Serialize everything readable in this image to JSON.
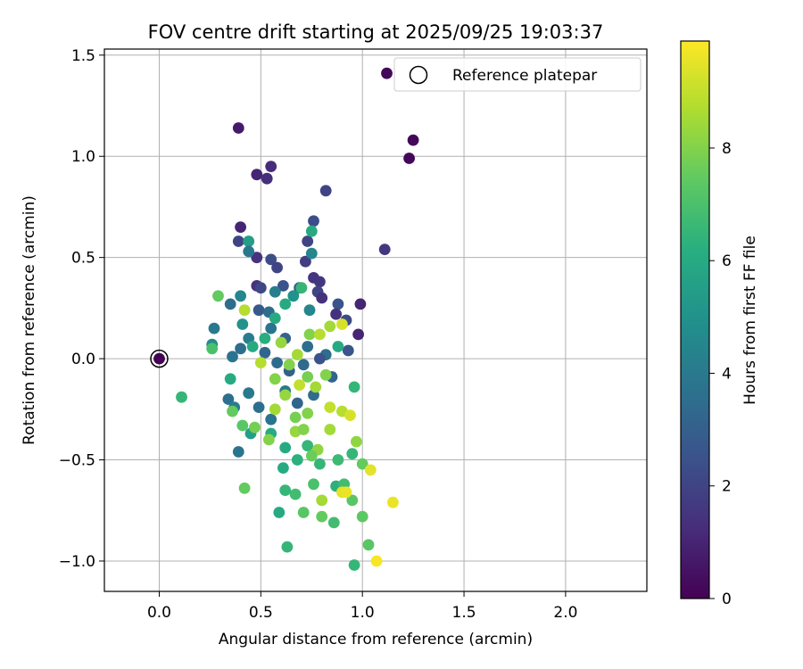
{
  "chart_data": {
    "type": "scatter",
    "title": "FOV centre drift starting at 2025/09/25 19:03:37",
    "xlabel": "Angular distance from reference (arcmin)",
    "ylabel": "Rotation from reference (arcmin)",
    "xlim": [
      -0.27,
      2.4
    ],
    "ylim": [
      -1.15,
      1.53
    ],
    "xticks": [
      0.0,
      0.5,
      1.0,
      1.5,
      2.0
    ],
    "xtick_labels": [
      "0.0",
      "0.5",
      "1.0",
      "1.5",
      "2.0"
    ],
    "yticks": [
      -1.0,
      -0.5,
      0.0,
      0.5,
      1.0,
      1.5
    ],
    "ytick_labels": [
      "−1.0",
      "−0.5",
      "0.0",
      "0.5",
      "1.0",
      "1.5"
    ],
    "grid": true,
    "colormap": "viridis",
    "colorbar": {
      "label": "Hours from first FF file",
      "range": [
        0,
        9.9
      ],
      "ticks": [
        0,
        2,
        4,
        6,
        8
      ],
      "tick_labels": [
        "0",
        "2",
        "4",
        "6",
        "8"
      ]
    },
    "legend": {
      "position": "top-right",
      "entries": [
        "Reference platepar"
      ]
    },
    "reference_point": {
      "x": 0.0,
      "y": 0.0,
      "hours": 0.0
    },
    "points": [
      [
        1.12,
        1.41,
        0.2
      ],
      [
        1.25,
        1.08,
        0.2
      ],
      [
        1.23,
        0.99,
        0.2
      ],
      [
        0.39,
        1.14,
        0.7
      ],
      [
        0.48,
        0.91,
        1.0
      ],
      [
        0.53,
        0.89,
        1.3
      ],
      [
        0.55,
        0.95,
        1.2
      ],
      [
        0.82,
        0.83,
        2.0
      ],
      [
        1.11,
        0.54,
        1.6
      ],
      [
        0.4,
        0.65,
        1.0
      ],
      [
        0.39,
        0.58,
        2.0
      ],
      [
        0.76,
        0.68,
        2.3
      ],
      [
        0.48,
        0.5,
        1.5
      ],
      [
        0.55,
        0.49,
        2.3
      ],
      [
        0.58,
        0.45,
        2.0
      ],
      [
        0.72,
        0.48,
        1.8
      ],
      [
        0.75,
        0.52,
        4.5
      ],
      [
        0.73,
        0.58,
        2.0
      ],
      [
        0.76,
        0.4,
        1.5
      ],
      [
        0.79,
        0.38,
        1.6
      ],
      [
        0.78,
        0.33,
        2.0
      ],
      [
        0.8,
        0.3,
        1.4
      ],
      [
        0.48,
        0.36,
        1.4
      ],
      [
        0.5,
        0.35,
        2.1
      ],
      [
        0.61,
        0.36,
        2.5
      ],
      [
        0.69,
        0.35,
        3.0
      ],
      [
        0.88,
        0.27,
        2.5
      ],
      [
        0.99,
        0.27,
        1.0
      ],
      [
        0.87,
        0.22,
        1.4
      ],
      [
        0.92,
        0.19,
        2.2
      ],
      [
        0.98,
        0.12,
        1.0
      ],
      [
        0.35,
        0.27,
        3.5
      ],
      [
        0.4,
        0.31,
        4.5
      ],
      [
        0.49,
        0.24,
        2.8
      ],
      [
        0.54,
        0.23,
        3.5
      ],
      [
        0.55,
        0.15,
        3.8
      ],
      [
        0.62,
        0.1,
        3.1
      ],
      [
        0.73,
        0.06,
        3.5
      ],
      [
        0.82,
        0.02,
        3.5
      ],
      [
        0.93,
        0.04,
        2.6
      ],
      [
        0.27,
        0.15,
        4.0
      ],
      [
        0.26,
        0.07,
        4.7
      ],
      [
        0.36,
        0.01,
        3.8
      ],
      [
        0.4,
        0.05,
        3.5
      ],
      [
        0.44,
        0.1,
        4.2
      ],
      [
        0.52,
        0.03,
        3.2
      ],
      [
        0.58,
        -0.02,
        3.4
      ],
      [
        0.64,
        -0.06,
        3.0
      ],
      [
        0.71,
        -0.03,
        3.4
      ],
      [
        0.79,
        0.0,
        2.5
      ],
      [
        0.34,
        -0.2,
        3.6
      ],
      [
        0.37,
        -0.24,
        4.2
      ],
      [
        0.44,
        -0.17,
        4.0
      ],
      [
        0.49,
        -0.24,
        3.6
      ],
      [
        0.55,
        -0.3,
        3.8
      ],
      [
        0.62,
        -0.16,
        4.0
      ],
      [
        0.68,
        -0.22,
        3.2
      ],
      [
        0.76,
        -0.18,
        3.5
      ],
      [
        0.85,
        -0.09,
        3.2
      ],
      [
        0.39,
        -0.46,
        3.8
      ],
      [
        0.44,
        0.58,
        5.5
      ],
      [
        0.44,
        0.53,
        4.0
      ],
      [
        0.57,
        0.33,
        4.2
      ],
      [
        0.66,
        0.31,
        5.0
      ],
      [
        0.74,
        0.24,
        4.5
      ],
      [
        0.75,
        0.63,
        6.0
      ],
      [
        0.7,
        0.35,
        6.5
      ],
      [
        0.62,
        0.27,
        6.0
      ],
      [
        0.57,
        0.2,
        6.0
      ],
      [
        0.52,
        0.1,
        6.2
      ],
      [
        0.46,
        0.06,
        6.0
      ],
      [
        0.41,
        0.17,
        5.0
      ],
      [
        0.35,
        -0.1,
        6.0
      ],
      [
        0.45,
        -0.37,
        5.5
      ],
      [
        0.55,
        -0.37,
        6.0
      ],
      [
        0.62,
        -0.44,
        6.0
      ],
      [
        0.68,
        -0.5,
        6.3
      ],
      [
        0.73,
        -0.43,
        6.5
      ],
      [
        0.79,
        -0.52,
        6.5
      ],
      [
        0.88,
        -0.5,
        6.7
      ],
      [
        0.95,
        -0.47,
        6.5
      ],
      [
        0.61,
        -0.54,
        6.0
      ],
      [
        0.59,
        -0.76,
        6.0
      ],
      [
        0.62,
        -0.65,
        6.5
      ],
      [
        0.67,
        -0.67,
        6.8
      ],
      [
        0.71,
        -0.76,
        7.3
      ],
      [
        0.76,
        -0.62,
        7.0
      ],
      [
        0.8,
        -0.78,
        7.5
      ],
      [
        0.86,
        -0.81,
        6.8
      ],
      [
        0.87,
        -0.63,
        6.3
      ],
      [
        0.91,
        -0.62,
        6.8
      ],
      [
        0.95,
        -0.7,
        7.3
      ],
      [
        1.0,
        -0.78,
        7.4
      ],
      [
        1.03,
        -0.92,
        7.3
      ],
      [
        0.96,
        -1.02,
        6.5
      ],
      [
        0.63,
        -0.93,
        6.5
      ],
      [
        0.11,
        -0.19,
        6.5
      ],
      [
        0.26,
        0.05,
        7.0
      ],
      [
        0.29,
        0.31,
        7.5
      ],
      [
        0.36,
        -0.26,
        7.5
      ],
      [
        0.41,
        -0.33,
        7.3
      ],
      [
        0.42,
        -0.64,
        7.5
      ],
      [
        0.47,
        -0.34,
        7.8
      ],
      [
        0.54,
        -0.4,
        8.0
      ],
      [
        0.57,
        -0.25,
        8.5
      ],
      [
        0.62,
        -0.18,
        8.3
      ],
      [
        0.67,
        -0.29,
        7.8
      ],
      [
        0.73,
        -0.27,
        8.0
      ],
      [
        0.78,
        -0.45,
        8.2
      ],
      [
        0.84,
        -0.35,
        8.5
      ],
      [
        0.84,
        -0.24,
        9.0
      ],
      [
        0.9,
        -0.26,
        8.8
      ],
      [
        0.94,
        -0.28,
        9.3
      ],
      [
        0.97,
        -0.41,
        8.2
      ],
      [
        1.0,
        -0.52,
        7.5
      ],
      [
        1.04,
        -0.55,
        9.5
      ],
      [
        1.15,
        -0.71,
        9.6
      ],
      [
        1.07,
        -1.0,
        9.8
      ],
      [
        0.9,
        -0.66,
        9.5
      ],
      [
        0.92,
        -0.66,
        9.6
      ],
      [
        0.8,
        -0.7,
        8.5
      ],
      [
        0.69,
        -0.13,
        9.0
      ],
      [
        0.68,
        0.02,
        8.5
      ],
      [
        0.64,
        -0.03,
        8.0
      ],
      [
        0.6,
        0.08,
        8.3
      ],
      [
        0.57,
        -0.1,
        8.0
      ],
      [
        0.5,
        -0.02,
        8.8
      ],
      [
        0.42,
        0.24,
        8.8
      ],
      [
        0.74,
        0.12,
        8.0
      ],
      [
        0.79,
        0.12,
        8.8
      ],
      [
        0.84,
        0.16,
        8.5
      ],
      [
        0.9,
        0.17,
        9.3
      ],
      [
        0.73,
        -0.09,
        7.8
      ],
      [
        0.77,
        -0.14,
        8.5
      ],
      [
        0.67,
        -0.36,
        8.3
      ],
      [
        0.71,
        -0.35,
        8.0
      ],
      [
        0.75,
        -0.48,
        7.6
      ],
      [
        0.96,
        -0.14,
        6.5
      ],
      [
        0.88,
        0.06,
        6.0
      ],
      [
        0.82,
        -0.08,
        8.0
      ]
    ]
  }
}
